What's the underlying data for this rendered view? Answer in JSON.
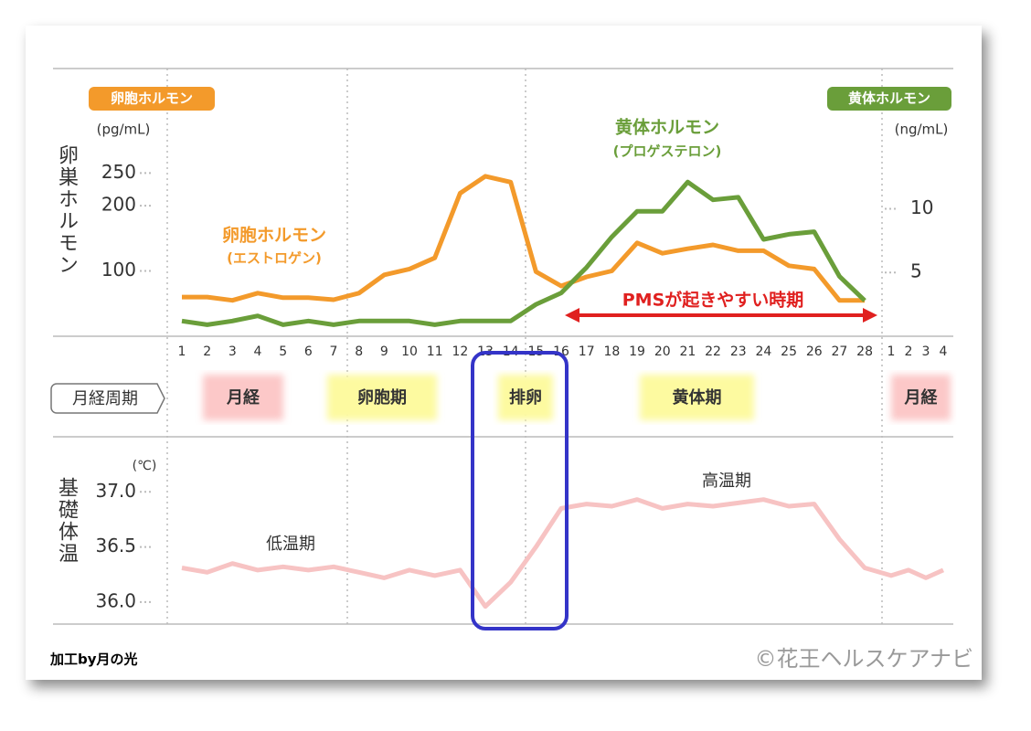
{
  "chart_data": [
    {
      "type": "line",
      "categories": [
        "1",
        "2",
        "3",
        "4",
        "5",
        "6",
        "7",
        "8",
        "9",
        "10",
        "11",
        "12",
        "13",
        "14",
        "15",
        "16",
        "17",
        "18",
        "19",
        "20",
        "21",
        "22",
        "23",
        "24",
        "25",
        "26",
        "27",
        "28",
        "1",
        "2",
        "3",
        "4"
      ],
      "y_label": "卵巣ホルモン",
      "y_unit": "(pg/mL)",
      "y2_unit": "(ng/mL)",
      "ylim": [
        0,
        410
      ],
      "yticks": [
        100,
        200,
        250
      ],
      "y2lim": [
        0,
        21
      ],
      "y2ticks": [
        5,
        10
      ],
      "series": [
        {
          "name": "卵胞ホルモン",
          "color": "#f39a2b",
          "values": [
            60,
            60,
            55,
            66,
            59,
            59,
            56,
            66,
            94,
            103,
            120,
            219,
            245,
            236,
            99,
            77,
            91,
            100,
            143,
            127,
            134,
            140,
            131,
            131,
            108,
            103,
            55,
            55,
            null,
            null,
            null,
            null
          ]
        },
        {
          "name": "黄体ホルモン",
          "color": "#6a9e3a",
          "axis": "y2",
          "values": [
            1.2,
            0.9,
            1.2,
            1.6,
            0.9,
            1.2,
            0.9,
            1.2,
            1.2,
            1.2,
            0.9,
            1.2,
            1.2,
            1.2,
            2.5,
            3.4,
            5.4,
            7.8,
            9.8,
            9.8,
            12.1,
            10.7,
            10.9,
            7.6,
            8.0,
            8.2,
            4.7,
            2.8,
            null,
            null,
            null,
            null
          ]
        }
      ],
      "annotations": [
        {
          "text": "卵胞ホルモン",
          "sub": "(エストロゲン)"
        },
        {
          "text": "黄体ホルモン",
          "sub": "(プロゲステロン)"
        },
        {
          "text": "PMSが起きやすい時期"
        }
      ]
    },
    {
      "type": "line",
      "y_label": "基礎体温",
      "y_unit": "(℃)",
      "ylim": [
        35.8,
        37.5
      ],
      "yticks": [
        {
          "value": 36,
          "label": "36.0"
        },
        36.5,
        {
          "value": 37,
          "label": "37.0"
        }
      ],
      "series": [
        {
          "name": "基礎体温",
          "color": "#f7c3c3",
          "values": [
            36.31,
            36.27,
            36.35,
            36.29,
            36.32,
            36.29,
            36.32,
            36.27,
            36.22,
            36.29,
            36.24,
            36.29,
            35.96,
            36.18,
            36.5,
            36.85,
            36.89,
            36.87,
            36.93,
            36.85,
            36.89,
            36.87,
            36.9,
            36.93,
            36.87,
            36.89,
            36.57,
            36.31,
            36.24,
            36.29,
            36.22,
            36.29
          ]
        }
      ],
      "annotations": [
        {
          "text": "低温期"
        },
        {
          "text": "高温期"
        }
      ]
    }
  ],
  "cycle": {
    "label": "月経周期",
    "phases": [
      {
        "name": "月経",
        "color": "#fcc8c8"
      },
      {
        "name": "卵胞期",
        "color": "#fdfaa0"
      },
      {
        "name": "排卵",
        "color": "#fdfaa0"
      },
      {
        "name": "黄体期",
        "color": "#fdfaa0"
      },
      {
        "name": "月経",
        "color": "#fcc8c8"
      }
    ]
  },
  "credits": {
    "left": "加工by月の光",
    "right": "©花王ヘルスケアナビ"
  }
}
